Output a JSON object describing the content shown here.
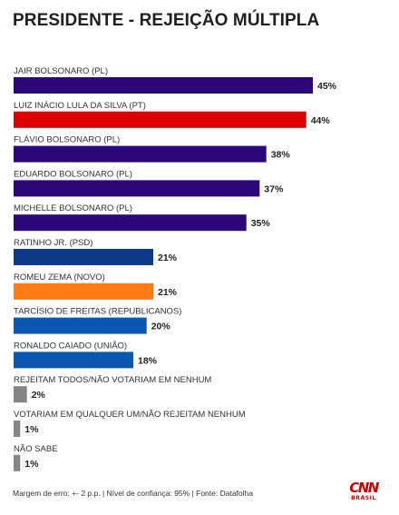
{
  "chart_data": {
    "type": "bar",
    "orientation": "horizontal",
    "title": "PRESIDENTE - REJEIÇÃO MÚLTIPLA",
    "unit": "%",
    "categories": [
      "JAIR BOLSONARO (PL)",
      "LUIZ INÁCIO LULA DA SILVA (PT)",
      "FLÁVIO BOLSONARO (PL)",
      "EDUARDO BOLSONARO (PL)",
      "MICHELLE BOLSONARO (PL)",
      "RATINHO JR. (PSD)",
      "ROMEU ZEMA (NOVO)",
      "TARCÍSIO DE FREITAS (REPUBLICANOS)",
      "RONALDO CAIADO (UNIÃO)",
      "REJEITAM TODOS/NÃO VOTARIAM EM NENHUM",
      "VOTARIAM EM QUALQUER UM/NÃO REJEITAM NENHUM",
      "NÃO SABE"
    ],
    "values": [
      45,
      44,
      38,
      37,
      35,
      21,
      21,
      20,
      18,
      2,
      1,
      1
    ],
    "value_labels": [
      "45%",
      "44%",
      "38%",
      "37%",
      "35%",
      "21%",
      "21%",
      "20%",
      "18%",
      "2%",
      "1%",
      "1%"
    ],
    "colors": [
      "#2b087a",
      "#dd0000",
      "#2b087a",
      "#2b087a",
      "#2b087a",
      "#0f3a8a",
      "#ff7a12",
      "#0b58b2",
      "#0b58b2",
      "#858585",
      "#858585",
      "#858585"
    ],
    "xlim": [
      0,
      45
    ],
    "grid": false,
    "legend": "none"
  },
  "footnote": "Margem de erro: +- 2 p.p. | Nível de confiança: 95% | Fonte: Datafolha",
  "logo": {
    "top": "CNN",
    "bottom": "BRASIL",
    "color": "#cc0000"
  }
}
